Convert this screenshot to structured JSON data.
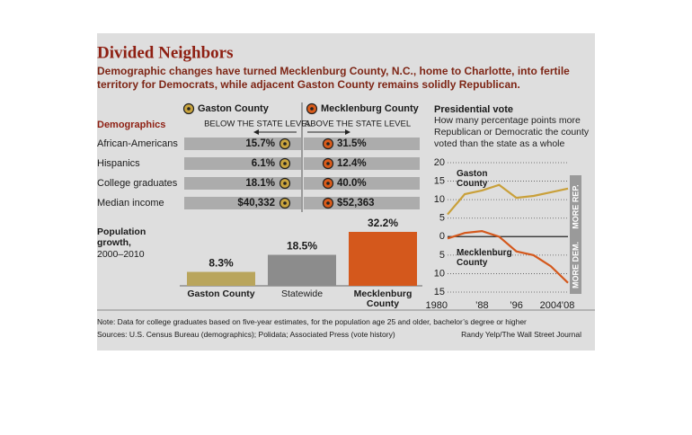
{
  "header": {
    "title": "Divided Neighbors",
    "subtitle": "Demographic changes have turned Mecklenburg County, N.C., home to Charlotte, into fertile territory for Democrats, while adjacent Gaston County remains solidly Republican."
  },
  "chart_data": [
    {
      "type": "dot_table",
      "title": "Demographics",
      "below_label": "BELOW THE STATE LEVEL",
      "above_label": "ABOVE THE STATE LEVEL",
      "categories": [
        "African-Americans",
        "Hispanics",
        "College graduates",
        "Median income"
      ],
      "series": [
        {
          "name": "Gaston County",
          "color": "#c9a43e",
          "values": [
            15.7,
            6.1,
            18.1,
            40332
          ],
          "value_labels": [
            "15.7%",
            "6.1%",
            "18.1%",
            "$40,332"
          ]
        },
        {
          "name": "Mecklenburg County",
          "color": "#d95b1a",
          "values": [
            31.5,
            12.4,
            40.0,
            52363
          ],
          "value_labels": [
            "31.5%",
            "12.4%",
            "40.0%",
            "$52,363"
          ]
        }
      ]
    },
    {
      "type": "bar",
      "title": "Population growth,",
      "subtitle": "2000–2010",
      "categories": [
        "Gaston County",
        "Statewide",
        "Mecklenburg County"
      ],
      "values": [
        8.3,
        18.5,
        32.2
      ],
      "value_labels": [
        "8.3%",
        "18.5%",
        "32.2%"
      ],
      "colors": [
        "#b9a55c",
        "#8c8c8c",
        "#d4581c"
      ]
    },
    {
      "type": "line",
      "title": "Presidential vote",
      "subtitle": "How many percentage points more Republican or Democratic the county voted than the state as a whole",
      "x": [
        1980,
        1984,
        1988,
        1992,
        1996,
        2000,
        2004,
        2008
      ],
      "xlim": [
        1980,
        2008
      ],
      "xticks": [
        1980,
        {
          "value": 1988,
          "label": "’88"
        },
        {
          "value": 1996,
          "label": "’96"
        },
        2004,
        {
          "value": 2008,
          "label": "’08"
        }
      ],
      "ylim": [
        -15,
        20
      ],
      "yticks": [
        20,
        15,
        10,
        5,
        0,
        {
          "value": -5,
          "label": "5"
        },
        {
          "value": -10,
          "label": "10"
        },
        {
          "value": -15,
          "label": "15"
        }
      ],
      "grid": true,
      "annotations": [
        "MORE REP.",
        "MORE DEM."
      ],
      "series": [
        {
          "name": "Gaston County",
          "color": "#c9a03a",
          "values": [
            6,
            11.5,
            12.5,
            14,
            10.5,
            11,
            12,
            13
          ]
        },
        {
          "name": "Mecklenburg County",
          "color": "#d4581c",
          "values": [
            -0.5,
            1,
            1.5,
            0,
            -4,
            -5,
            -8,
            -12.5
          ]
        }
      ]
    }
  ],
  "footer": {
    "note": "Note: Data for college graduates based on five-year estimates, for the population age 25 and older, bachelor’s degree or higher",
    "sources": "Sources: U.S. Census Bureau (demographics); Polidata; Associated Press (vote history)",
    "credit": "Randy Yelp/The Wall Street Journal"
  }
}
